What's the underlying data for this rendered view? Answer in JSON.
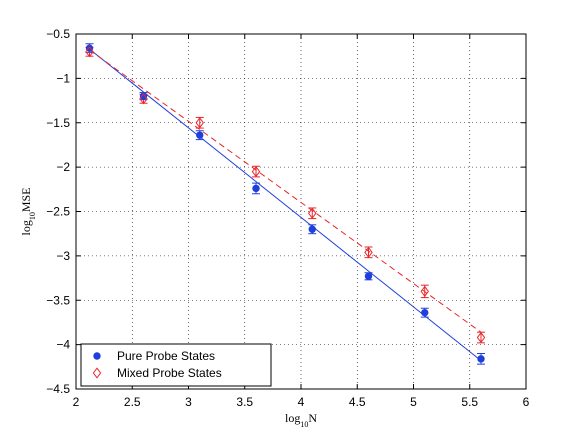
{
  "chart_data": {
    "type": "scatter",
    "xlabel_base": "log",
    "xlabel_sub": "10",
    "xlabel_var": "N",
    "ylabel_base": "log",
    "ylabel_sub": "10",
    "ylabel_var": "MSE",
    "xlim": [
      2,
      6
    ],
    "ylim": [
      -4.5,
      -0.5
    ],
    "xticks": [
      2,
      2.5,
      3,
      3.5,
      4,
      4.5,
      5,
      5.5,
      6
    ],
    "xtick_labels": [
      "2",
      "2.5",
      "3",
      "3.5",
      "4",
      "4.5",
      "5",
      "5.5",
      "6"
    ],
    "yticks": [
      -4.5,
      -4,
      -3.5,
      -3,
      -2.5,
      -2,
      -1.5,
      -1,
      -0.5
    ],
    "ytick_labels": [
      "−4.5",
      "−4",
      "−3.5",
      "−3",
      "−2.5",
      "−2",
      "−1.5",
      "−1",
      "−0.5"
    ],
    "grid": true,
    "legend_position": "bottom-left",
    "series": [
      {
        "name": "Pure Probe States",
        "marker": "filled-circle",
        "color": "#1f3fdb",
        "x": [
          2.12,
          2.6,
          3.1,
          3.6,
          4.1,
          4.6,
          5.1,
          5.6
        ],
        "y": [
          -0.66,
          -1.2,
          -1.64,
          -2.24,
          -2.7,
          -3.23,
          -3.64,
          -4.16
        ],
        "err": [
          0.05,
          0.04,
          0.05,
          0.06,
          0.05,
          0.04,
          0.05,
          0.06
        ],
        "fit": {
          "style": "solid",
          "x": [
            2.12,
            5.6
          ],
          "y": [
            -0.67,
            -4.18
          ]
        }
      },
      {
        "name": "Mixed Probe States",
        "marker": "open-diamond",
        "color": "#e8262a",
        "x": [
          2.12,
          2.6,
          3.1,
          3.6,
          4.1,
          4.6,
          5.1,
          5.6
        ],
        "y": [
          -0.7,
          -1.23,
          -1.5,
          -2.05,
          -2.52,
          -2.96,
          -3.4,
          -3.92
        ],
        "err": [
          0.05,
          0.05,
          0.06,
          0.06,
          0.06,
          0.06,
          0.07,
          0.06
        ],
        "fit": {
          "style": "dashed",
          "x": [
            2.12,
            5.6
          ],
          "y": [
            -0.68,
            -3.86
          ]
        }
      }
    ]
  }
}
